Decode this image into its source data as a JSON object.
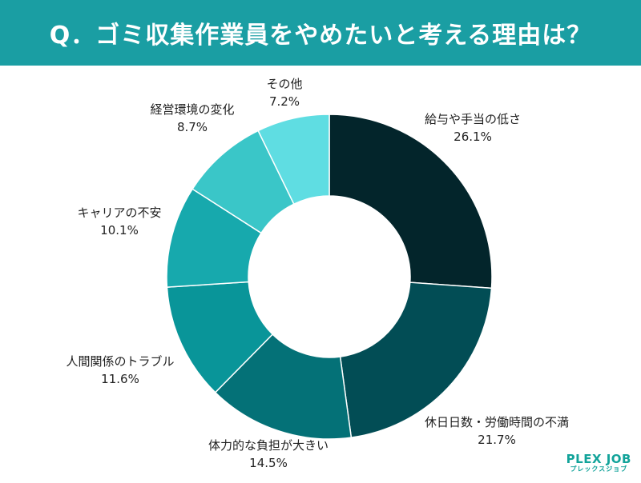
{
  "header": {
    "title": "Q．ゴミ収集作業員をやめたいと考える理由は？"
  },
  "brand": {
    "name": "PLEX JOB",
    "sub": "プレックスジョブ"
  },
  "chart_data": {
    "type": "pie",
    "donut": true,
    "title": "Q．ゴミ収集作業員をやめたいと考える理由は？",
    "start_angle_deg": 0,
    "direction": "clockwise",
    "unit": "%",
    "slices": [
      {
        "label": "給与や手当の低さ",
        "value": 26.1,
        "value_label": "26.1%",
        "color": "#03252b"
      },
      {
        "label": "休日日数・労働時間の不満",
        "value": 21.7,
        "value_label": "21.7%",
        "color": "#024d55"
      },
      {
        "label": "体力的な負担が大きい",
        "value": 14.5,
        "value_label": "14.5%",
        "color": "#047177"
      },
      {
        "label": "人間関係のトラブル",
        "value": 11.6,
        "value_label": "11.6%",
        "color": "#099599"
      },
      {
        "label": "キャリアの不安",
        "value": 10.1,
        "value_label": "10.1%",
        "color": "#17a9ad"
      },
      {
        "label": "経営環境の変化",
        "value": 8.7,
        "value_label": "8.7%",
        "color": "#3ac6c8"
      },
      {
        "label": "その他",
        "value": 7.2,
        "value_label": "7.2%",
        "color": "#5fdde2"
      }
    ]
  }
}
